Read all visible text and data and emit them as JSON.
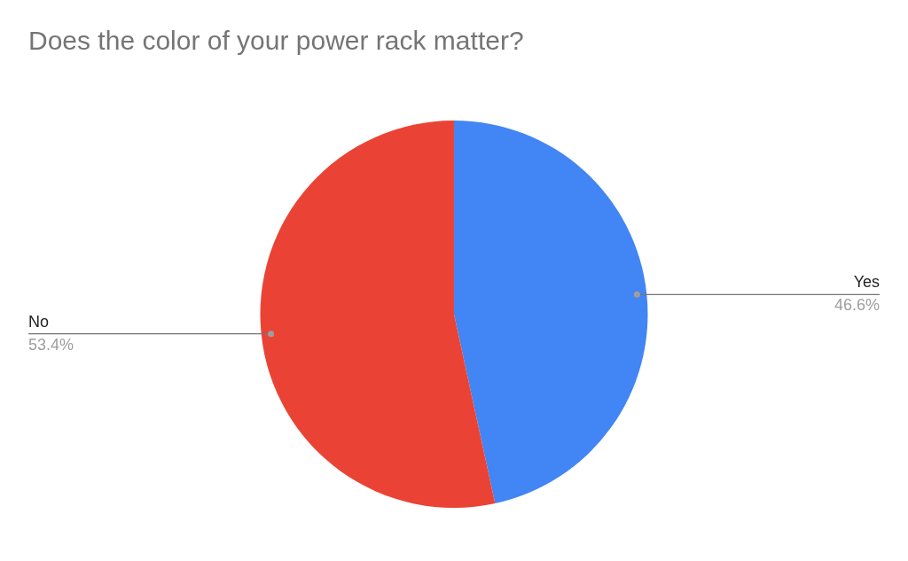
{
  "chart_data": {
    "type": "pie",
    "title": "Does the color of your power rack matter?",
    "categories": [
      "Yes",
      "No"
    ],
    "values": [
      46.6,
      53.4
    ],
    "colors": [
      "#4285f4",
      "#ea4335"
    ],
    "value_labels": [
      "46.6%",
      "53.4%"
    ],
    "legend": false
  }
}
